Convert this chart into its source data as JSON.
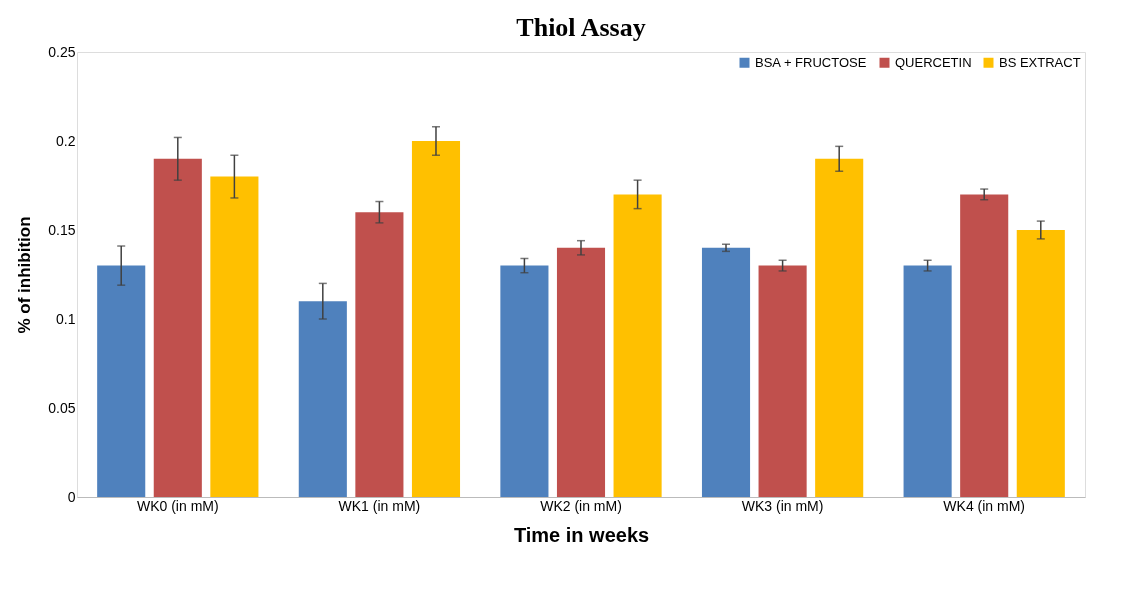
{
  "chart_data": {
    "type": "bar",
    "title": "Thiol Assay",
    "xlabel": "Time in weeks",
    "ylabel": "% of inhibition",
    "categories": [
      "WK0 (in mM)",
      "WK1 (in mM)",
      "WK2 (in mM)",
      "WK3 (in mM)",
      "WK4 (in mM)"
    ],
    "series": [
      {
        "name": "BSA + FRUCTOSE",
        "color": "#4f81bd",
        "values": [
          0.13,
          0.11,
          0.13,
          0.14,
          0.13
        ],
        "errors": [
          0.011,
          0.01,
          0.004,
          0.002,
          0.003
        ]
      },
      {
        "name": "QUERCETIN",
        "color": "#c0504d",
        "values": [
          0.19,
          0.16,
          0.14,
          0.13,
          0.17
        ],
        "errors": [
          0.012,
          0.006,
          0.004,
          0.003,
          0.003
        ]
      },
      {
        "name": "BS EXTRACT",
        "color": "#ffc000",
        "values": [
          0.18,
          0.2,
          0.17,
          0.19,
          0.15
        ],
        "errors": [
          0.012,
          0.008,
          0.008,
          0.007,
          0.005
        ]
      }
    ],
    "ylim": [
      0,
      0.25
    ],
    "yticks": [
      0,
      0.05,
      0.1,
      0.15,
      0.2,
      0.25
    ],
    "grid": false,
    "legend": "top right"
  }
}
